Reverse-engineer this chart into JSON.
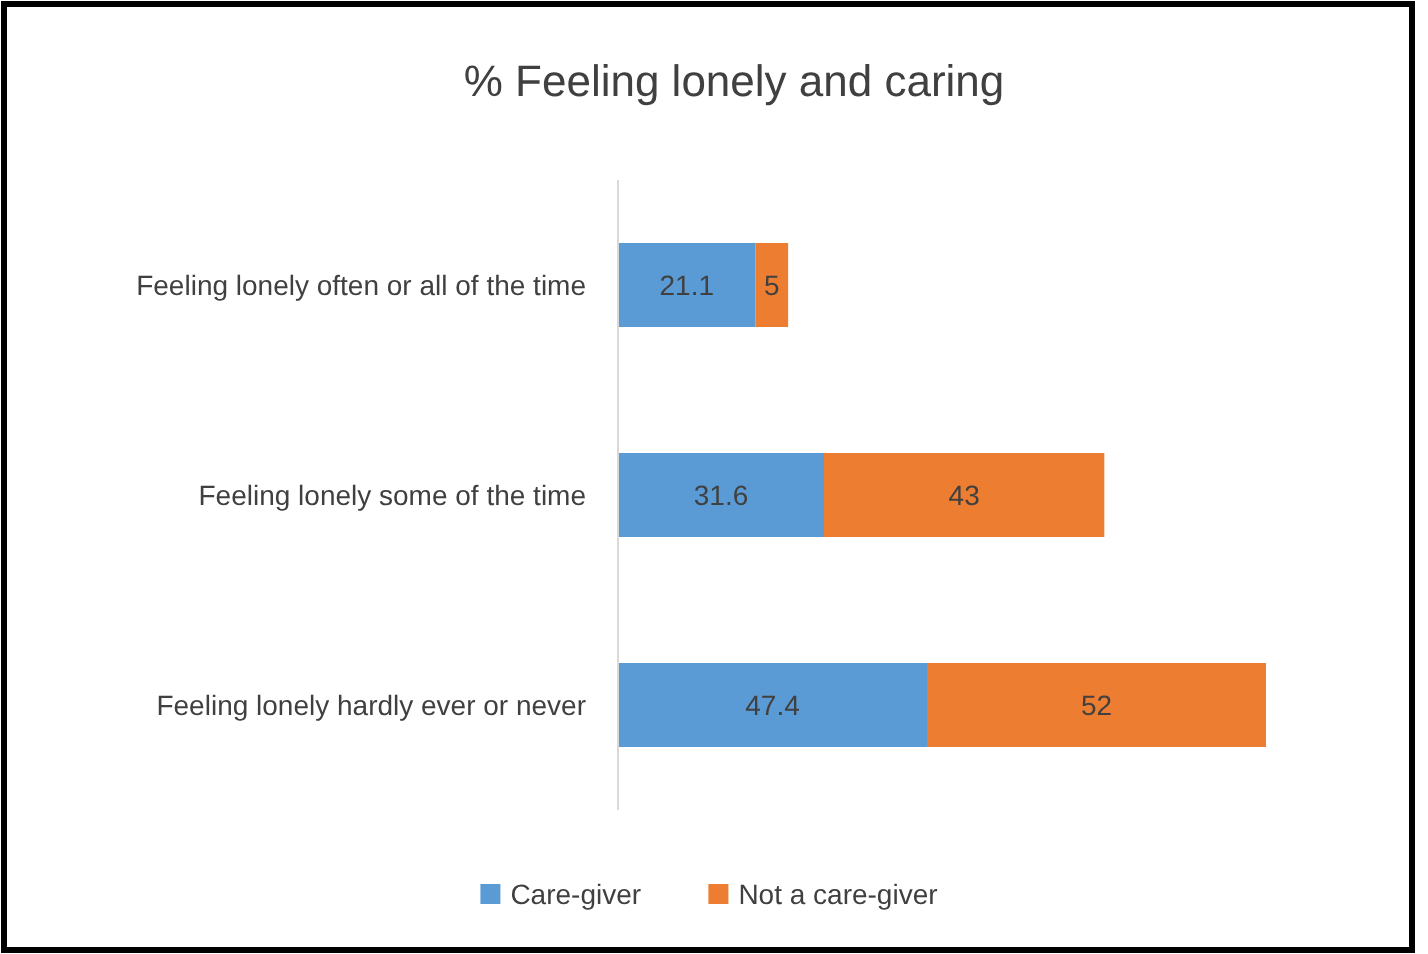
{
  "chart_data": {
    "type": "bar",
    "title": "% Feeling lonely and caring",
    "orientation": "horizontal",
    "stacked": true,
    "categories": [
      "Feeling lonely often or all of the time",
      "Feeling lonely some of the time",
      "Feeling lonely hardly ever or never"
    ],
    "series": [
      {
        "name": "Care-giver",
        "color": "#5b9bd5",
        "values": [
          21.1,
          31.6,
          47.4
        ]
      },
      {
        "name": "Not a care-giver",
        "color": "#ed7d31",
        "values": [
          5,
          43,
          52
        ]
      }
    ],
    "data_labels": true,
    "legend": "bottom"
  }
}
